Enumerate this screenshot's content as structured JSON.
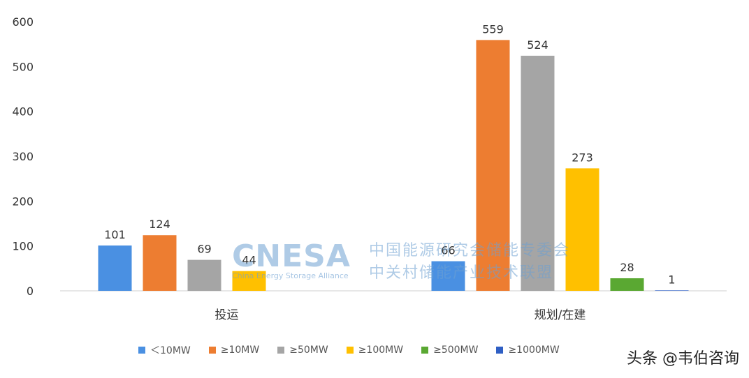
{
  "chart_data": {
    "type": "bar",
    "categories": [
      "投运",
      "规划/在建"
    ],
    "series": [
      {
        "name": "＜10MW",
        "color": "#4a90e2",
        "values": [
          101,
          66
        ]
      },
      {
        "name": "≥10MW",
        "color": "#ed7d31",
        "values": [
          124,
          559
        ]
      },
      {
        "name": "≥50MW",
        "color": "#a5a5a5",
        "values": [
          69,
          524
        ]
      },
      {
        "name": "≥100MW",
        "color": "#ffc000",
        "values": [
          44,
          273
        ]
      },
      {
        "name": "≥500MW",
        "color": "#5aa832",
        "values": [
          0,
          28
        ]
      },
      {
        "name": "≥1000MW",
        "color": "#2f5fc4",
        "values": [
          0,
          1
        ]
      }
    ],
    "bar_labels": [
      [
        "101",
        "124",
        "69",
        "44",
        "",
        ""
      ],
      [
        "66",
        "559",
        "524",
        "273",
        "28",
        "1"
      ]
    ],
    "ylim": [
      0,
      600
    ],
    "yticks": [
      0,
      100,
      200,
      300,
      400,
      500,
      600
    ],
    "grid": false,
    "legend": "bottom"
  },
  "watermark": {
    "logo": "CNESA",
    "subtitle": "China Energy Storage Alliance",
    "line1": "中国能源研究会储能专委会",
    "line2": "中关村储能产业技术联盟"
  },
  "credit": "头条 @韦伯咨询"
}
